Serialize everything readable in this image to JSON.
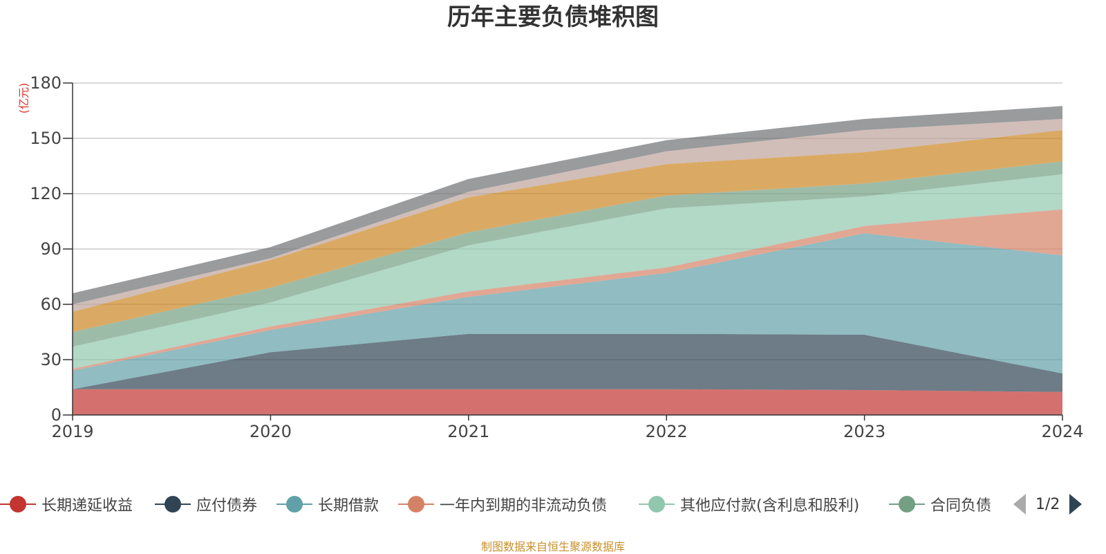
{
  "title": "历年主要负债堆积图",
  "footer": "制图数据来自恒生聚源数据库",
  "y_unit": "(亿元)",
  "legend_page": "1/2",
  "chart_data": {
    "type": "area",
    "stacked": true,
    "x": [
      "2019",
      "2020",
      "2021",
      "2022",
      "2023",
      "2024"
    ],
    "ylim": [
      0,
      180
    ],
    "yticks": [
      0,
      30,
      60,
      90,
      120,
      150,
      180
    ],
    "grid": true,
    "legend_position": "bottom",
    "series": [
      {
        "name": "长期递延收益",
        "color": "#c23531",
        "values": [
          14,
          14,
          14,
          14,
          13.5,
          12.5
        ]
      },
      {
        "name": "应付债券",
        "color": "#2f4554",
        "values": [
          0,
          20,
          30,
          30,
          30,
          10
        ]
      },
      {
        "name": "长期借款",
        "color": "#61a0a8",
        "values": [
          10,
          12,
          20,
          33,
          55,
          64
        ]
      },
      {
        "name": "一年内到期的非流动负债",
        "color": "#d48265",
        "values": [
          1,
          2,
          3,
          3,
          4,
          25
        ]
      },
      {
        "name": "其他应付款(含利息和股利)",
        "color": "#91c7ae",
        "values": [
          12,
          13,
          25,
          32,
          16,
          19
        ]
      },
      {
        "name": "合同负债",
        "color": "#749f83",
        "values": [
          8,
          8,
          7,
          7,
          7,
          7
        ]
      },
      {
        "name": "",
        "color": "#ca8622",
        "values": [
          11,
          15,
          19,
          17,
          17,
          17
        ]
      },
      {
        "name": "",
        "color": "#bda29a",
        "values": [
          4,
          1,
          3,
          7,
          12,
          6
        ]
      },
      {
        "name": "",
        "color": "#6e7074",
        "values": [
          6,
          6,
          7,
          6,
          6,
          7
        ]
      }
    ]
  }
}
